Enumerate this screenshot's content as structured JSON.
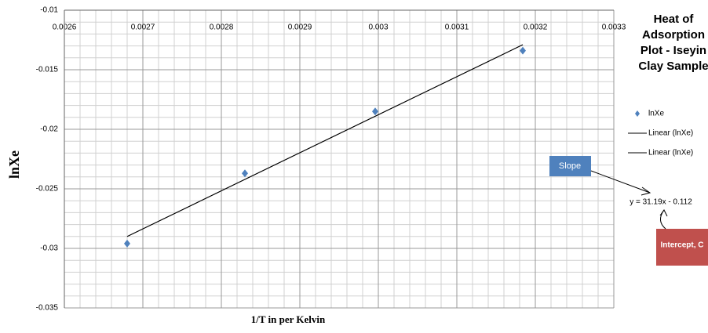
{
  "chart_data": {
    "type": "scatter",
    "title": [
      "Heat of",
      "Adsorption",
      "Plot - Iseyin",
      "Clay Sample"
    ],
    "x_label": "1/T in per Kelvin",
    "y_label": "lnXe",
    "xlim": [
      0.0026,
      0.0033
    ],
    "xticks": [
      0.0026,
      0.0027,
      0.0028,
      0.0029,
      0.003,
      0.0031,
      0.0032,
      0.0033
    ],
    "ylim": [
      -0.035,
      -0.01
    ],
    "yticks": [
      -0.035,
      -0.03,
      -0.025,
      -0.02,
      -0.015,
      -0.01
    ],
    "grid": true,
    "series": [
      {
        "name": "lnXe",
        "type": "scatter",
        "color": "#4f81bd",
        "x": [
          0.00268,
          0.00283,
          0.002996,
          0.003184
        ],
        "values": [
          -0.0296,
          -0.0237,
          -0.0185,
          -0.0134
        ]
      },
      {
        "name": "Linear (lnXe)",
        "type": "line",
        "color": "#000000",
        "x": [
          0.00268,
          0.003184
        ],
        "values": [
          -0.029,
          -0.0129
        ]
      },
      {
        "name": "Linear (lnXe)",
        "type": "line",
        "color": "#000000",
        "x": [
          0.00268,
          0.003184
        ],
        "values": [
          -0.029,
          -0.0129
        ]
      }
    ],
    "annotations": {
      "slope": "Slope",
      "intercept": "Intercept, C",
      "equation": "y = 31.19x - 0.112"
    }
  }
}
